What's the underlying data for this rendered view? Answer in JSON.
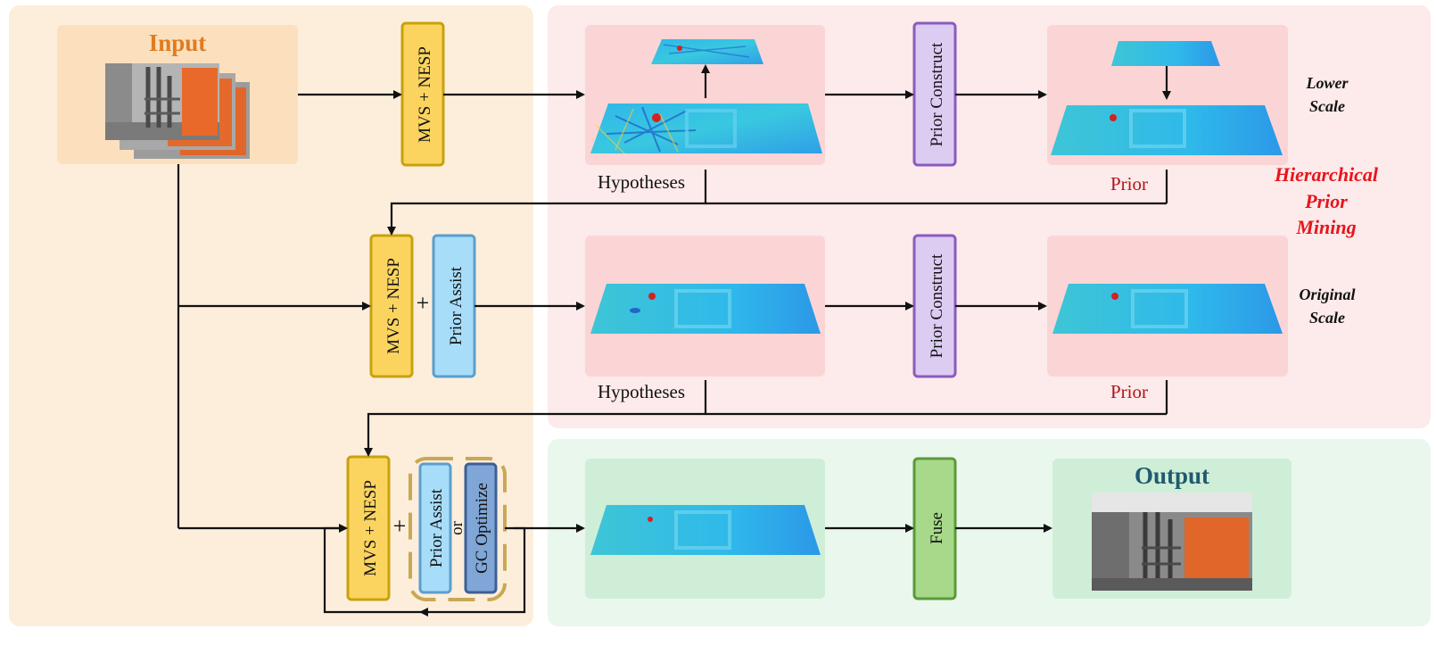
{
  "input": {
    "label": "Input"
  },
  "modules": {
    "mvs_nesp": "MVS + NESP",
    "prior_construct": "Prior Construct",
    "prior_assist": "Prior Assist",
    "gc_optimize": "GC Optimize",
    "or_word": "or",
    "fuse": "Fuse",
    "plus": "+"
  },
  "labels": {
    "hypotheses": "Hypotheses",
    "prior": "Prior",
    "lower_scale_l1": "Lower",
    "lower_scale_l2": "Scale",
    "original_scale_l1": "Original",
    "original_scale_l2": "Scale",
    "hpm_l1": "Hierarchical",
    "hpm_l2": "Prior",
    "hpm_l3": "Mining"
  },
  "output": {
    "label": "Output"
  },
  "colors": {
    "input_panel": "#fdeedc",
    "input_box": "#fce0bd",
    "input_text": "#e07b22",
    "pink_panel": "#fdeaea",
    "pink_box": "#fbd5d5",
    "green_panel": "#eaf7ed",
    "green_box": "#cfeed8",
    "mvs_fill": "#fbd460",
    "mvs_stroke": "#c9a20a",
    "prior_construct_fill": "#dcccf2",
    "prior_construct_stroke": "#8a5bbf",
    "prior_assist_fill": "#a7ddf8",
    "prior_assist_stroke": "#5a9fcf",
    "gc_fill": "#7fa6d6",
    "gc_stroke": "#3c6094",
    "fuse_fill": "#a8d88a",
    "fuse_stroke": "#5a9a3a",
    "prior_text": "#b0141a",
    "hpm_text": "#e8141c",
    "output_text": "#1f5a6e"
  }
}
